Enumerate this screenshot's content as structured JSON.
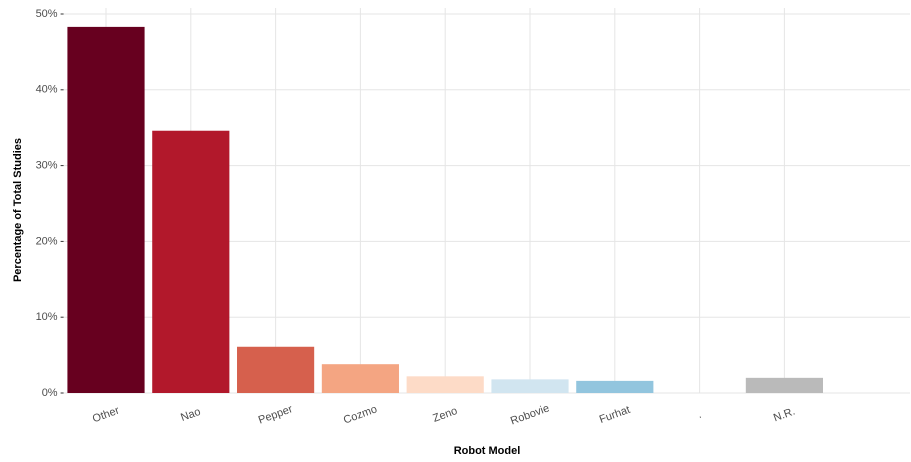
{
  "chart_data": {
    "type": "bar",
    "x_label": "Robot Model",
    "y_label": "Percentage of Total Studies",
    "categories": [
      "Other",
      "Nao",
      "Pepper",
      "Cozmo",
      "Zeno",
      "Robovie",
      "Furhat",
      ".",
      "N.R."
    ],
    "values": [
      48.3,
      34.6,
      6.1,
      3.8,
      2.2,
      1.8,
      1.6,
      0,
      2.0
    ],
    "colors": [
      "#67001f",
      "#b2182b",
      "#d6604d",
      "#f4a582",
      "#fddbc7",
      "#d1e5f0",
      "#92c5de",
      "#4393c3",
      "#bababa"
    ],
    "ylim": [
      0,
      50
    ],
    "yticks": [
      {
        "value": 0,
        "label": "0%"
      },
      {
        "value": 10,
        "label": "10%"
      },
      {
        "value": 20,
        "label": "20%"
      },
      {
        "value": 30,
        "label": "30%"
      },
      {
        "value": 40,
        "label": "40%"
      },
      {
        "value": 50,
        "label": "50%"
      }
    ],
    "grid": true
  }
}
